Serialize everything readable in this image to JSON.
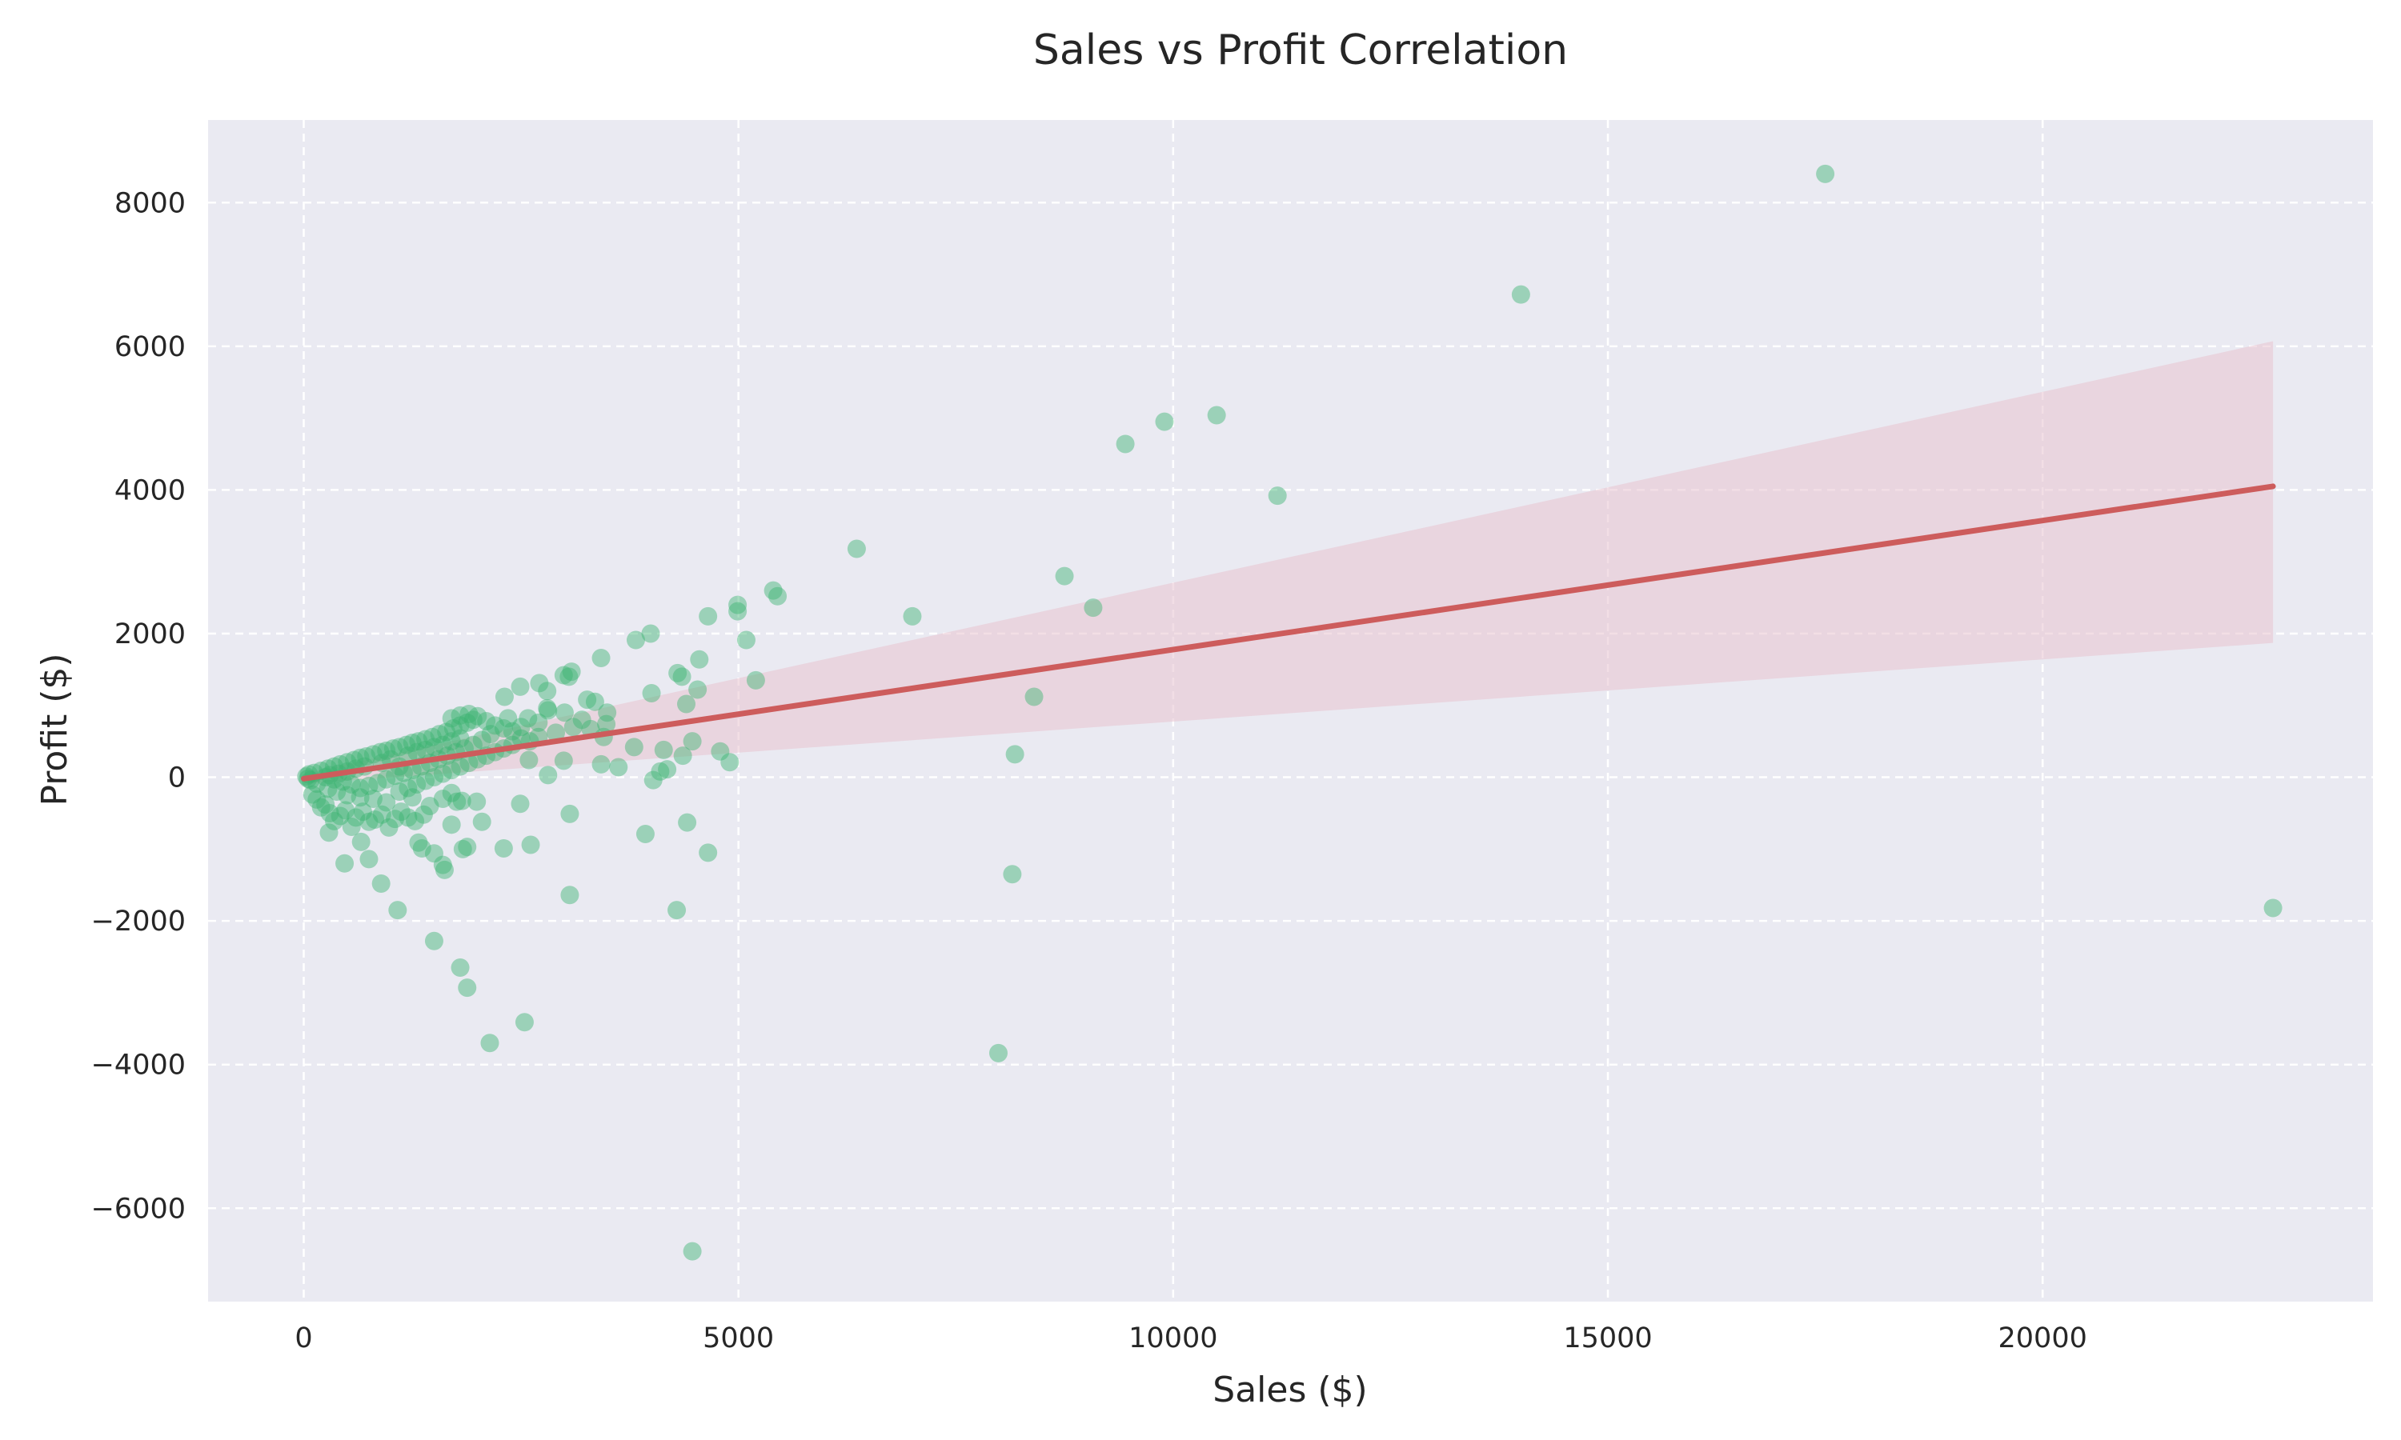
{
  "chart_data": {
    "type": "scatter",
    "title": "Sales vs Profit Correlation",
    "xlabel": "Sales ($)",
    "ylabel": "Profit ($)",
    "xlim": [
      -1100,
      23800
    ],
    "ylim": [
      -7300,
      9150
    ],
    "x_ticks": [
      0,
      5000,
      10000,
      15000,
      20000
    ],
    "x_tick_labels": [
      "0",
      "5000",
      "10000",
      "15000",
      "20000"
    ],
    "y_ticks": [
      -6000,
      -4000,
      -2000,
      0,
      2000,
      4000,
      6000,
      8000
    ],
    "y_tick_labels": [
      "−6000",
      "−4000",
      "−2000",
      "0",
      "2000",
      "4000",
      "6000",
      "8000"
    ],
    "grid": true,
    "grid_style": "dashed",
    "legend": "none",
    "colors": {
      "background": "#eaeaf2",
      "points": "#3cb371",
      "regression_line": "#cd5c5c",
      "confidence_band": "#e8c3cf",
      "grid": "#ffffff"
    },
    "points": [
      [
        17500,
        8400
      ],
      [
        14000,
        6720
      ],
      [
        10500,
        5040
      ],
      [
        9900,
        4950
      ],
      [
        9450,
        4640
      ],
      [
        11200,
        3920
      ],
      [
        6360,
        3180
      ],
      [
        8750,
        2800
      ],
      [
        9080,
        2360
      ],
      [
        7000,
        2240
      ],
      [
        5400,
        2600
      ],
      [
        5450,
        2520
      ],
      [
        4990,
        2400
      ],
      [
        4990,
        2310
      ],
      [
        4650,
        2240
      ],
      [
        5090,
        1910
      ],
      [
        3820,
        1910
      ],
      [
        3990,
        2000
      ],
      [
        4550,
        1640
      ],
      [
        3420,
        1660
      ],
      [
        5200,
        1350
      ],
      [
        4300,
        1450
      ],
      [
        4350,
        1400
      ],
      [
        4000,
        1170
      ],
      [
        4530,
        1220
      ],
      [
        4400,
        1020
      ],
      [
        8400,
        1120
      ],
      [
        3080,
        1470
      ],
      [
        2990,
        1420
      ],
      [
        3050,
        1400
      ],
      [
        2710,
        1310
      ],
      [
        2490,
        1260
      ],
      [
        2800,
        1200
      ],
      [
        2310,
        1120
      ],
      [
        3260,
        1080
      ],
      [
        3350,
        1050
      ],
      [
        2800,
        960
      ],
      [
        2810,
        930
      ],
      [
        3490,
        900
      ],
      [
        2580,
        820
      ],
      [
        3480,
        740
      ],
      [
        3450,
        560
      ],
      [
        3300,
        670
      ],
      [
        2700,
        760
      ],
      [
        3800,
        420
      ],
      [
        3620,
        140
      ],
      [
        3420,
        180
      ],
      [
        4140,
        380
      ],
      [
        4180,
        110
      ],
      [
        4100,
        80
      ],
      [
        4360,
        300
      ],
      [
        4470,
        500
      ],
      [
        4790,
        360
      ],
      [
        4900,
        210
      ],
      [
        4020,
        -40
      ],
      [
        8180,
        320
      ],
      [
        3930,
        -790
      ],
      [
        4410,
        -630
      ],
      [
        4650,
        -1050
      ],
      [
        3060,
        -1640
      ],
      [
        4290,
        -1850
      ],
      [
        8150,
        -1350
      ],
      [
        2610,
        -940
      ],
      [
        3060,
        -510
      ],
      [
        2300,
        -990
      ],
      [
        2490,
        -370
      ],
      [
        2810,
        30
      ],
      [
        2590,
        240
      ],
      [
        2990,
        230
      ],
      [
        2500,
        540
      ],
      [
        1830,
        -1000
      ],
      [
        1500,
        -1060
      ],
      [
        1600,
        -1220
      ],
      [
        1620,
        -1290
      ],
      [
        1820,
        -330
      ],
      [
        1760,
        -340
      ],
      [
        1700,
        -660
      ],
      [
        1880,
        -970
      ],
      [
        2050,
        -620
      ],
      [
        1990,
        -340
      ],
      [
        1320,
        -910
      ],
      [
        1360,
        -990
      ],
      [
        1080,
        -1850
      ],
      [
        890,
        -1480
      ],
      [
        750,
        -1140
      ],
      [
        470,
        -1200
      ],
      [
        660,
        -900
      ],
      [
        290,
        -770
      ],
      [
        1500,
        -2280
      ],
      [
        1800,
        -2650
      ],
      [
        1880,
        -2930
      ],
      [
        2140,
        -3700
      ],
      [
        2540,
        -3410
      ],
      [
        4470,
        -6600
      ],
      [
        7990,
        -3840
      ],
      [
        22650,
        -1820
      ],
      [
        100,
        -240
      ],
      [
        150,
        -310
      ],
      [
        200,
        -420
      ],
      [
        250,
        -380
      ],
      [
        300,
        -500
      ],
      [
        350,
        -610
      ],
      [
        420,
        -540
      ],
      [
        480,
        -460
      ],
      [
        550,
        -690
      ],
      [
        600,
        -560
      ],
      [
        680,
        -480
      ],
      [
        750,
        -620
      ],
      [
        820,
        -590
      ],
      [
        900,
        -520
      ],
      [
        980,
        -700
      ],
      [
        1050,
        -580
      ],
      [
        1120,
        -480
      ],
      [
        1200,
        -560
      ],
      [
        1280,
        -610
      ],
      [
        1380,
        -520
      ],
      [
        1450,
        -400
      ],
      [
        1600,
        -300
      ],
      [
        1700,
        -220
      ],
      [
        1250,
        -280
      ],
      [
        950,
        -350
      ],
      [
        800,
        -300
      ],
      [
        650,
        -280
      ],
      [
        500,
        -250
      ],
      [
        380,
        -200
      ],
      [
        280,
        -160
      ],
      [
        150,
        -90
      ],
      [
        80,
        -40
      ],
      [
        50,
        -20
      ],
      [
        30,
        10
      ],
      [
        60,
        40
      ],
      [
        120,
        60
      ],
      [
        200,
        90
      ],
      [
        280,
        120
      ],
      [
        350,
        150
      ],
      [
        420,
        180
      ],
      [
        500,
        210
      ],
      [
        580,
        240
      ],
      [
        650,
        270
      ],
      [
        720,
        290
      ],
      [
        800,
        320
      ],
      [
        880,
        350
      ],
      [
        950,
        370
      ],
      [
        1030,
        400
      ],
      [
        1100,
        420
      ],
      [
        1180,
        450
      ],
      [
        1250,
        480
      ],
      [
        1320,
        500
      ],
      [
        1400,
        530
      ],
      [
        1480,
        560
      ],
      [
        1560,
        600
      ],
      [
        1640,
        630
      ],
      [
        1720,
        680
      ],
      [
        1800,
        720
      ],
      [
        1880,
        760
      ],
      [
        1950,
        800
      ],
      [
        1700,
        820
      ],
      [
        1800,
        860
      ],
      [
        1900,
        880
      ],
      [
        2000,
        850
      ],
      [
        2100,
        780
      ],
      [
        2200,
        720
      ],
      [
        2300,
        680
      ],
      [
        2400,
        640
      ],
      [
        2500,
        700
      ],
      [
        2350,
        820
      ],
      [
        2150,
        600
      ],
      [
        2050,
        520
      ],
      [
        1950,
        450
      ],
      [
        1850,
        400
      ],
      [
        1750,
        350
      ],
      [
        1650,
        300
      ],
      [
        1550,
        250
      ],
      [
        1450,
        200
      ],
      [
        1350,
        150
      ],
      [
        1250,
        100
      ],
      [
        1150,
        60
      ],
      [
        1050,
        20
      ],
      [
        950,
        -30
      ],
      [
        850,
        -80
      ],
      [
        750,
        -120
      ],
      [
        650,
        -150
      ],
      [
        550,
        -100
      ],
      [
        450,
        -60
      ],
      [
        350,
        -30
      ],
      [
        250,
        0
      ],
      [
        900,
        200
      ],
      [
        1000,
        250
      ],
      [
        1100,
        150
      ],
      [
        1200,
        300
      ],
      [
        1300,
        350
      ],
      [
        1400,
        380
      ],
      [
        1500,
        420
      ],
      [
        1600,
        450
      ],
      [
        1700,
        500
      ],
      [
        1800,
        540
      ],
      [
        700,
        150
      ],
      [
        600,
        120
      ],
      [
        500,
        80
      ],
      [
        400,
        50
      ],
      [
        300,
        30
      ],
      [
        1100,
        -200
      ],
      [
        1200,
        -150
      ],
      [
        1300,
        -100
      ],
      [
        1400,
        -50
      ],
      [
        1500,
        0
      ],
      [
        1600,
        50
      ],
      [
        1700,
        100
      ],
      [
        1800,
        150
      ],
      [
        1900,
        200
      ],
      [
        2000,
        250
      ],
      [
        2100,
        300
      ],
      [
        2200,
        350
      ],
      [
        2300,
        400
      ],
      [
        2400,
        450
      ],
      [
        2600,
        500
      ],
      [
        2700,
        560
      ],
      [
        2900,
        620
      ],
      [
        3100,
        700
      ],
      [
        3200,
        800
      ],
      [
        3000,
        900
      ]
    ],
    "regression": {
      "x": [
        0,
        22650
      ],
      "y": [
        -20,
        4050
      ]
    },
    "confidence_band": {
      "x": [
        0,
        22650
      ],
      "lower": [
        -90,
        1870
      ],
      "upper": [
        50,
        6070
      ]
    }
  }
}
